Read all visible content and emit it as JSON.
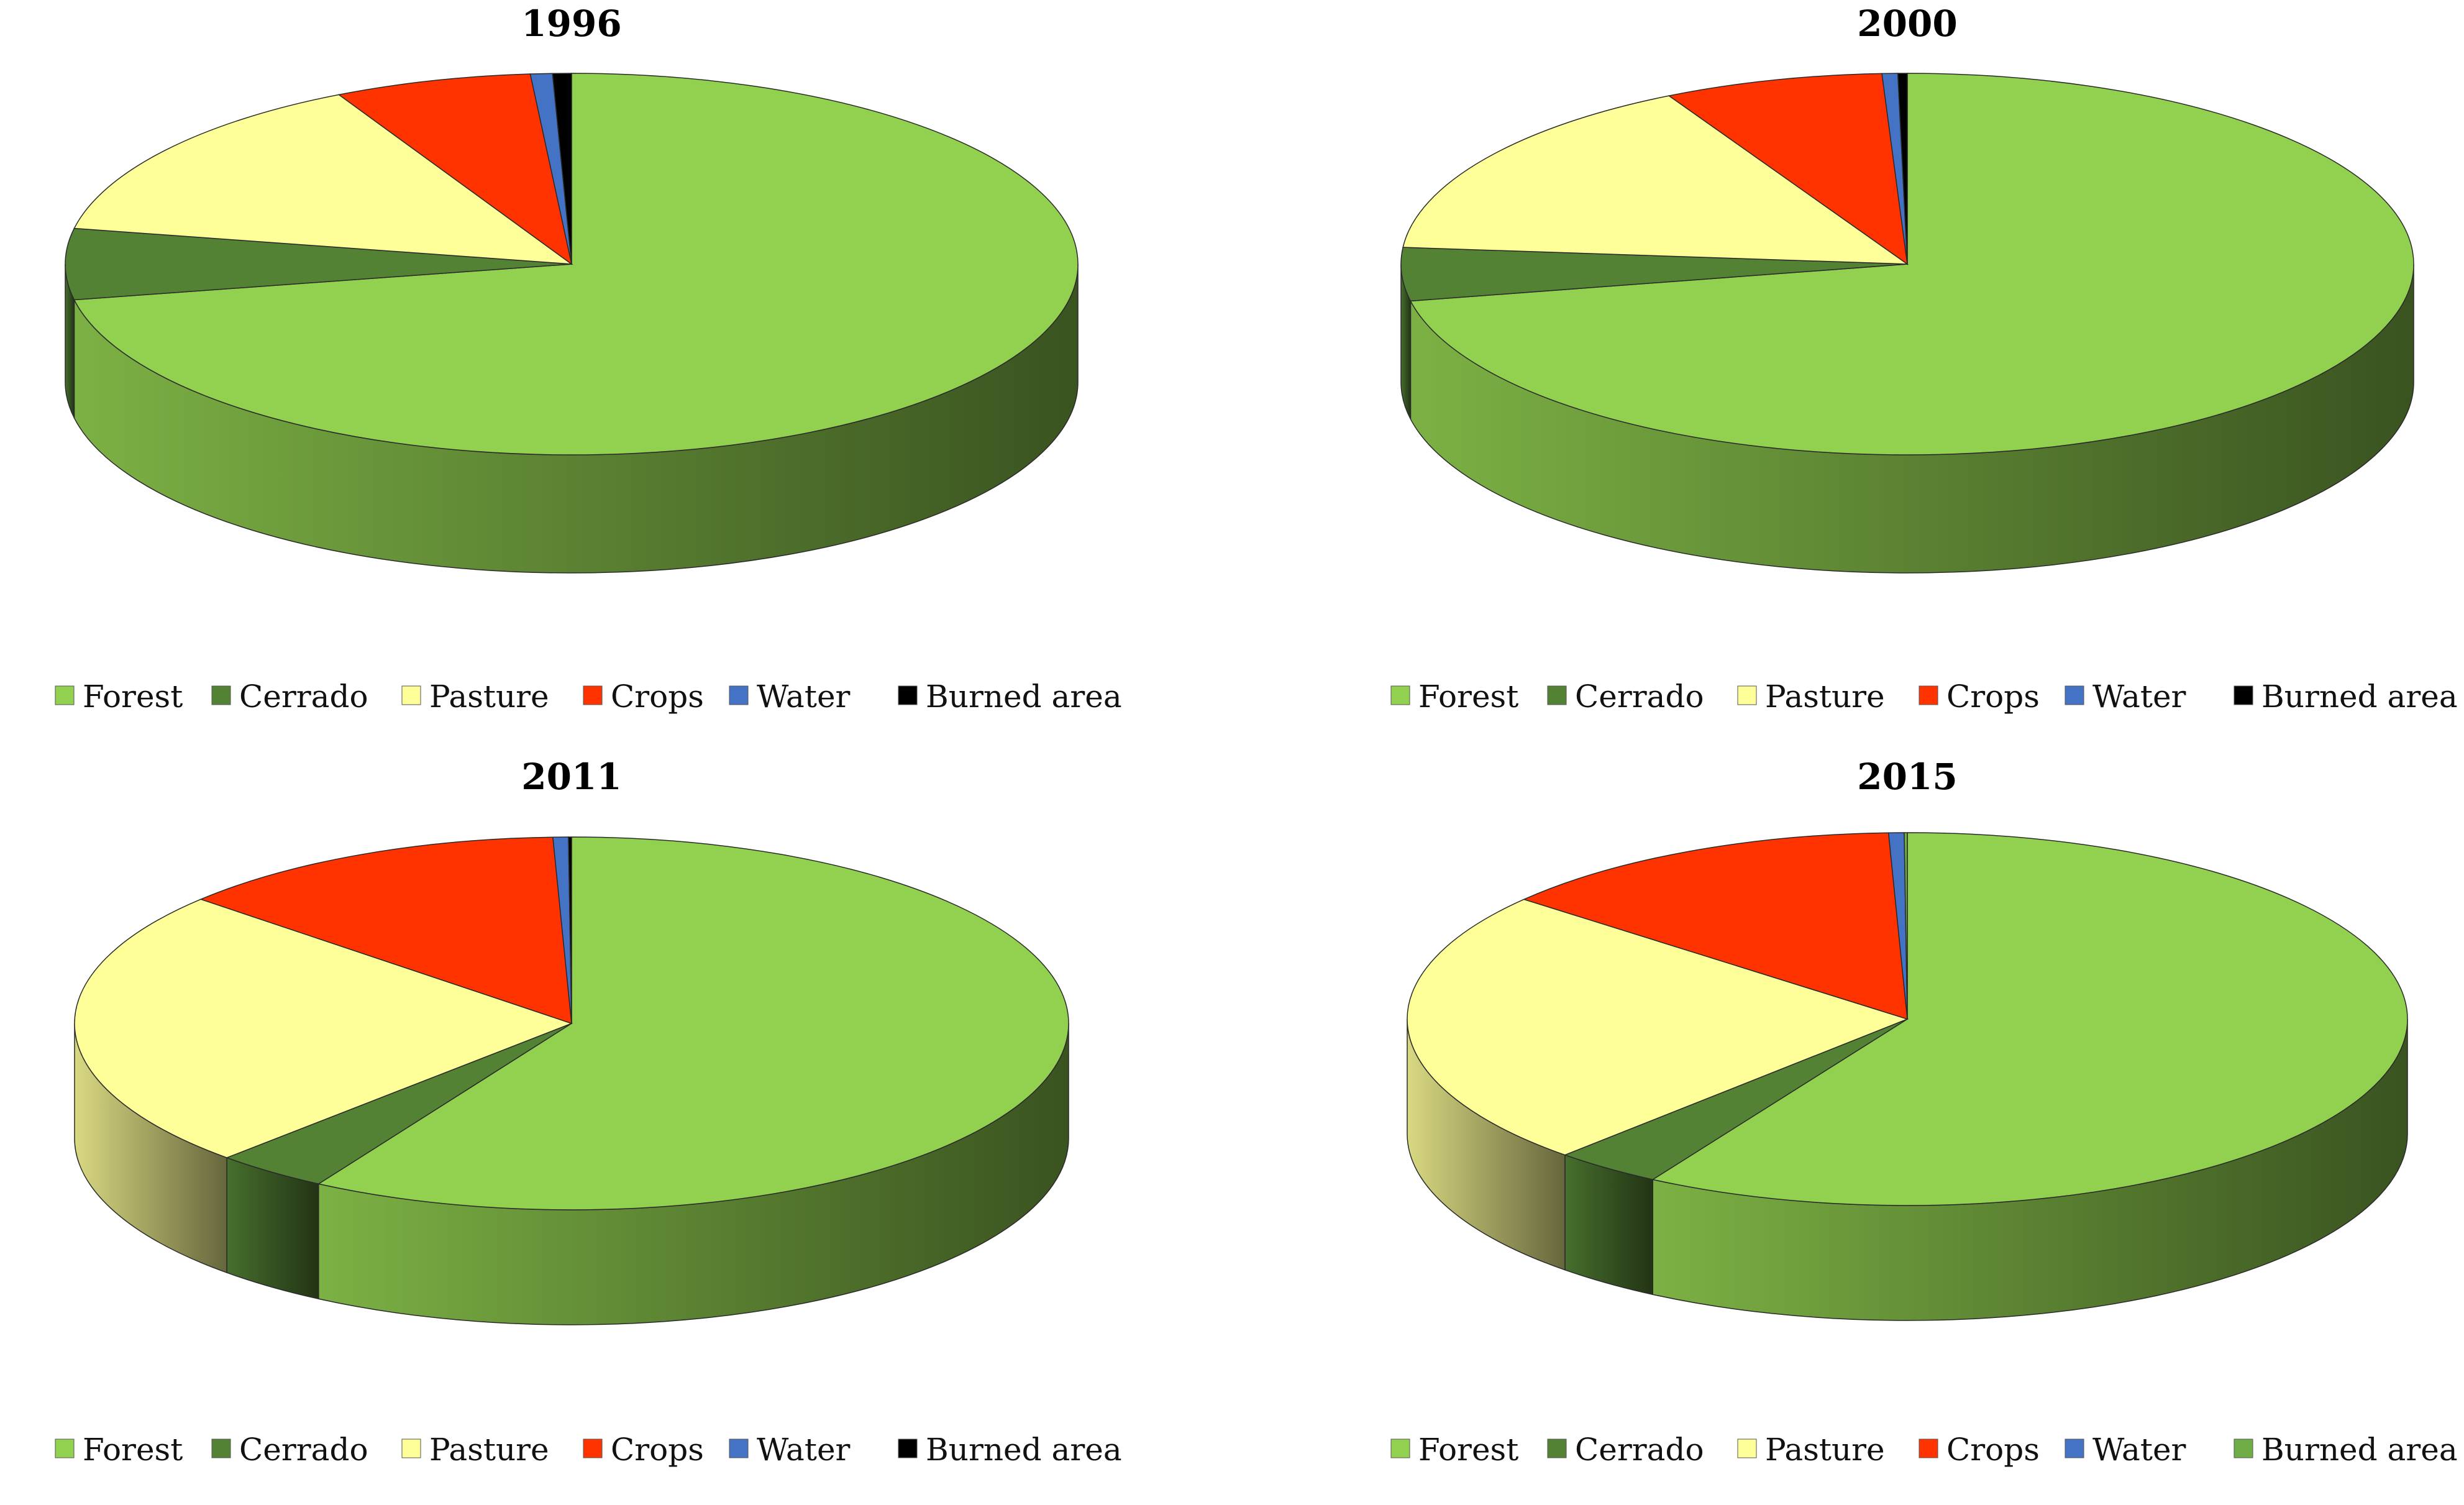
{
  "chart_data": [
    {
      "type": "pie",
      "title": "1996",
      "categories": [
        "Forest",
        "Cerrado",
        "Pasture",
        "Crops",
        "Water",
        "Burned area"
      ],
      "values": [
        72.0,
        6.0,
        14.4,
        6.3,
        0.7,
        0.6
      ],
      "colors": [
        "#92d050",
        "#548235",
        "#ffff99",
        "#ff3300",
        "#4472c4",
        "#000000"
      ],
      "legend_position": "bottom"
    },
    {
      "type": "pie",
      "title": "2000",
      "categories": [
        "Forest",
        "Cerrado",
        "Pasture",
        "Crops",
        "Water",
        "Burned area"
      ],
      "values": [
        71.9,
        4.5,
        15.8,
        7.0,
        0.5,
        0.3
      ],
      "colors": [
        "#92d050",
        "#548235",
        "#ffff99",
        "#ff3300",
        "#4472c4",
        "#000000"
      ],
      "legend_position": "bottom"
    },
    {
      "type": "pie",
      "title": "2011",
      "categories": [
        "Forest",
        "Cerrado",
        "Pasture",
        "Crops",
        "Water",
        "Burned area"
      ],
      "values": [
        58.5,
        3.7,
        24.4,
        12.8,
        0.5,
        0.1
      ],
      "colors": [
        "#92d050",
        "#548235",
        "#ffff99",
        "#ff3300",
        "#4472c4",
        "#000000"
      ],
      "legend_position": "bottom"
    },
    {
      "type": "pie",
      "title": "2015",
      "categories": [
        "Forest",
        "Cerrado",
        "Pasture",
        "Crops",
        "Water",
        "Burned area"
      ],
      "values": [
        58.5,
        3.5,
        24.1,
        13.3,
        0.5,
        0.1
      ],
      "colors": [
        "#92d050",
        "#548235",
        "#ffff99",
        "#ff3300",
        "#4472c4",
        "#70ad47"
      ],
      "legend_position": "bottom"
    }
  ]
}
